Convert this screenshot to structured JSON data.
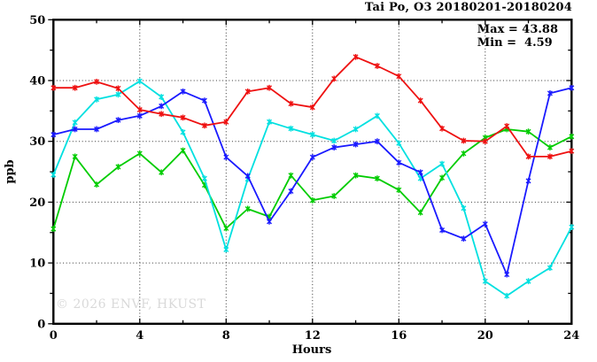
{
  "header": {
    "title": "Tai Po, O3 20180201-20180204"
  },
  "annotation": {
    "max_label": "Max = 43.88",
    "min_label": "Min =  4.59"
  },
  "watermark": "© 2026 ENVF, HKUST",
  "colors": {
    "background": "#ffffff",
    "frame": "#000000",
    "grid": "#333333",
    "watermark_gray": "#d9d9d9",
    "series_red": "#ee1111",
    "series_blue": "#1a1aff",
    "series_green": "#00cc00",
    "series_cyan": "#00e0e0"
  },
  "chart_data": {
    "type": "line",
    "title": "Tai Po, O3 20180201-20180204",
    "xlabel": "Hours",
    "ylabel": "ppb",
    "xlim": [
      0,
      24
    ],
    "ylim": [
      0,
      50
    ],
    "x_major_ticks": [
      0,
      4,
      8,
      12,
      16,
      20,
      24
    ],
    "x_minor_ticks": [
      2,
      6,
      10,
      14,
      18,
      22
    ],
    "y_major_ticks": [
      0,
      10,
      20,
      30,
      40,
      50
    ],
    "y_minor_ticks": [
      5,
      15,
      25,
      35,
      45
    ],
    "x_gridlines": [
      4,
      8,
      12,
      16,
      20
    ],
    "y_gridlines": [
      10,
      20,
      30,
      40
    ],
    "grid": true,
    "legend_position": "none",
    "stat_max": 43.88,
    "stat_min": 4.59,
    "marker": "asterisk",
    "x": [
      0,
      1,
      2,
      3,
      4,
      5,
      6,
      7,
      8,
      9,
      10,
      11,
      12,
      13,
      14,
      15,
      16,
      17,
      18,
      19,
      20,
      21,
      22,
      23,
      24
    ],
    "series": [
      {
        "name": "green-line",
        "color": "#00cc00",
        "values": [
          15.6,
          27.5,
          22.9,
          25.8,
          28.0,
          24.9,
          28.5,
          22.8,
          15.7,
          18.9,
          17.6,
          24.4,
          20.3,
          21.0,
          24.4,
          23.9,
          22.0,
          18.3,
          24.0,
          28.0,
          30.6,
          32.0,
          31.6,
          29.0,
          30.8
        ]
      },
      {
        "name": "cyan-line",
        "color": "#00e0e0",
        "values": [
          24.5,
          33.1,
          36.9,
          37.7,
          39.9,
          37.3,
          31.5,
          23.9,
          12.2,
          23.8,
          33.2,
          32.1,
          31.1,
          30.1,
          32.0,
          34.2,
          29.7,
          23.9,
          26.3,
          19.0,
          7.0,
          4.59,
          7.0,
          9.2,
          15.9
        ]
      },
      {
        "name": "blue-line",
        "color": "#1a1aff",
        "values": [
          31.1,
          32.0,
          32.0,
          33.5,
          34.2,
          35.8,
          38.2,
          36.7,
          27.4,
          24.3,
          16.8,
          21.8,
          27.4,
          29.0,
          29.5,
          30.0,
          26.5,
          24.9,
          15.4,
          14.0,
          16.4,
          8.1,
          23.5,
          37.9,
          38.8
        ]
      },
      {
        "name": "red-line",
        "color": "#ee1111",
        "values": [
          38.8,
          38.8,
          39.8,
          38.7,
          35.2,
          34.5,
          33.9,
          32.6,
          33.2,
          38.2,
          38.8,
          36.2,
          35.6,
          40.3,
          43.88,
          42.4,
          40.7,
          36.7,
          32.1,
          30.1,
          30.0,
          32.5,
          27.5,
          27.5,
          28.4
        ]
      }
    ]
  }
}
